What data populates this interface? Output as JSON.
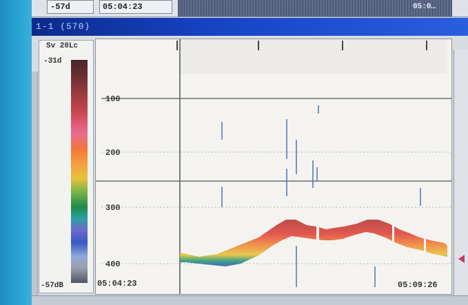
{
  "top_strip": {
    "depth_value": "-57d",
    "time_value": "05:04:23",
    "noise_time": "05:0…"
  },
  "window": {
    "title": "1-1 (570)"
  },
  "color_scale": {
    "title": "Sv 20Lc",
    "top_value": "-31d",
    "bottom_value": "-57dB"
  },
  "echogram": {
    "depth_labels": [
      "100",
      "200",
      "300",
      "400"
    ],
    "start_time": "05:04:23",
    "end_time": "05:09:26"
  },
  "colors": {
    "title_bar": "#1742c4",
    "background": "#f4f3ef",
    "strong_echo": "#e0463e",
    "weak_echo": "#3a58c4"
  }
}
